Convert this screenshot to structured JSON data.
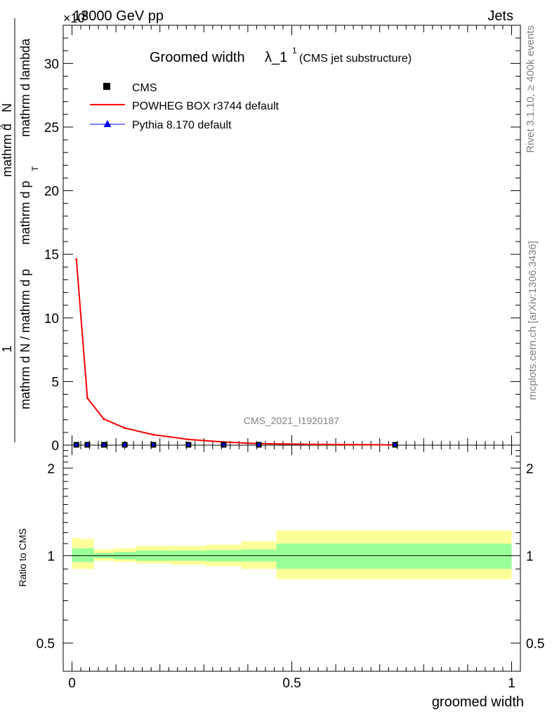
{
  "header": {
    "energy_label": "13000 GeV pp",
    "category_label": "Jets",
    "multiplier": "×10",
    "multiplier_exp": "6"
  },
  "side_labels": {
    "rivet": "Rivet 3.1.10, ≥ 400k events",
    "mcplots": "mcplots.cern.ch [arXiv:1306.3436]"
  },
  "watermark": "CMS_2021_I1920187",
  "chart_data": [
    {
      "type": "line",
      "title": "Groomed width",
      "title_symbol": "λ_1",
      "title_sup": "1",
      "subtitle": "(CMS jet substructure)",
      "xlabel": "groomed width",
      "ylabel_top": "1",
      "ylabel_num": "mathrm d",
      "ylabel_num_sup": "2",
      "ylabel_num_tail": "N",
      "ylabel_den": "mathrm d N / mathrm d p",
      "ylabel_den_mid": "mathrm d p",
      "ylabel_den_tail": "mathrm d lambda",
      "ylabel_sub": "T",
      "xlim": [
        -0.02,
        1.02
      ],
      "ylim": [
        0,
        33
      ],
      "yticks": [
        0,
        5,
        10,
        15,
        20,
        25,
        30
      ],
      "legend_position": "top-left",
      "legend": [
        {
          "name": "CMS",
          "marker": "square",
          "color": "#000000"
        },
        {
          "name": "POWHEG BOX r3744 default",
          "marker": "line",
          "color": "#ff0000"
        },
        {
          "name": "Pythia 8.170 default",
          "marker": "triangle",
          "color": "#0000ff"
        }
      ],
      "series": [
        {
          "name": "CMS",
          "x": [
            0.01,
            0.035,
            0.0725,
            0.12,
            0.185,
            0.265,
            0.345,
            0.425,
            0.735
          ],
          "values": [
            0.03,
            0.03,
            0.03,
            0.03,
            0.03,
            0.03,
            0.03,
            0.03,
            0.03
          ]
        },
        {
          "name": "POWHEG BOX r3744 default",
          "x": [
            0.01,
            0.035,
            0.0725,
            0.12,
            0.185,
            0.265,
            0.345,
            0.425,
            0.55,
            0.735
          ],
          "values": [
            14.6,
            3.7,
            2.05,
            1.35,
            0.82,
            0.45,
            0.25,
            0.12,
            0.06,
            0.02
          ]
        }
      ]
    },
    {
      "type": "area",
      "ylabel": "Ratio to CMS",
      "xlabel": "groomed width",
      "xlim": [
        -0.02,
        1.02
      ],
      "ylim": [
        0.4,
        2.4
      ],
      "yscale": "log",
      "yticks": [
        0.5,
        1,
        2
      ],
      "xticks": [
        0,
        0.5,
        1
      ],
      "xtick_labels": [
        "0",
        "0.5",
        "1"
      ],
      "bins": [
        0,
        0.02,
        0.05,
        0.095,
        0.145,
        0.225,
        0.305,
        0.385,
        0.465,
        1.0
      ],
      "stat_band": [
        [
          0.95,
          1.06
        ],
        [
          0.95,
          1.06
        ],
        [
          0.98,
          1.02
        ],
        [
          0.97,
          1.03
        ],
        [
          0.96,
          1.04
        ],
        [
          0.96,
          1.04
        ],
        [
          0.955,
          1.045
        ],
        [
          0.955,
          1.05
        ],
        [
          0.9,
          1.1
        ]
      ],
      "total_band": [
        [
          0.9,
          1.15
        ],
        [
          0.9,
          1.14
        ],
        [
          0.96,
          1.05
        ],
        [
          0.95,
          1.06
        ],
        [
          0.94,
          1.08
        ],
        [
          0.93,
          1.08
        ],
        [
          0.92,
          1.09
        ],
        [
          0.9,
          1.12
        ],
        [
          0.83,
          1.22
        ]
      ],
      "reference": 1
    }
  ]
}
